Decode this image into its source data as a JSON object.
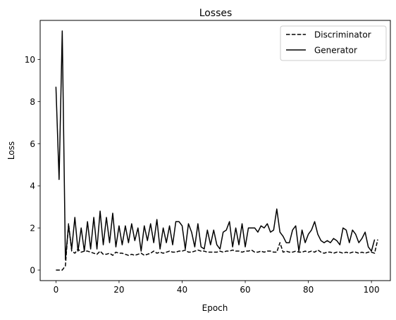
{
  "chart_data": {
    "type": "line",
    "title": "Losses",
    "xlabel": "Epoch",
    "ylabel": "Loss",
    "xlim": [
      -5,
      106
    ],
    "ylim": [
      -0.5,
      11.85
    ],
    "xticks": [
      0,
      20,
      40,
      60,
      80,
      100
    ],
    "yticks": [
      0,
      2,
      4,
      6,
      8,
      10
    ],
    "grid": false,
    "legend_position": "top-right",
    "x_start": 0,
    "x_step": 1,
    "series": [
      {
        "name": "Discriminator",
        "style": "dashed",
        "color": "#000000",
        "values": [
          0.0,
          0.0,
          0.0,
          0.2,
          2.2,
          0.9,
          0.8,
          1.0,
          0.85,
          0.9,
          0.9,
          0.85,
          0.8,
          0.75,
          0.9,
          0.75,
          0.75,
          0.8,
          0.7,
          0.85,
          0.8,
          0.8,
          0.75,
          0.7,
          0.75,
          0.7,
          0.75,
          0.8,
          0.7,
          0.75,
          0.8,
          0.9,
          0.8,
          0.85,
          0.8,
          0.85,
          0.9,
          0.85,
          0.85,
          0.9,
          0.9,
          0.95,
          0.85,
          0.85,
          0.9,
          0.95,
          0.9,
          0.9,
          0.85,
          0.85,
          0.85,
          0.85,
          0.9,
          0.85,
          0.9,
          0.9,
          0.95,
          0.9,
          0.9,
          0.85,
          0.9,
          0.9,
          0.95,
          0.85,
          0.85,
          0.9,
          0.85,
          0.9,
          0.9,
          0.85,
          0.85,
          1.3,
          0.85,
          0.9,
          0.85,
          0.85,
          0.9,
          0.85,
          0.85,
          0.9,
          0.85,
          0.9,
          0.85,
          0.95,
          0.85,
          0.8,
          0.85,
          0.85,
          0.8,
          0.85,
          0.85,
          0.8,
          0.85,
          0.8,
          0.85,
          0.85,
          0.8,
          0.85,
          0.8,
          0.85,
          0.85,
          0.8,
          1.45
        ]
      },
      {
        "name": "Generator",
        "style": "solid",
        "color": "#000000",
        "values": [
          8.7,
          4.3,
          11.35,
          0.5,
          2.1,
          1.0,
          2.5,
          0.9,
          2.0,
          0.9,
          2.3,
          1.0,
          2.5,
          1.0,
          2.8,
          1.2,
          2.5,
          1.3,
          2.7,
          1.1,
          2.1,
          1.2,
          2.1,
          1.3,
          2.2,
          1.4,
          2.0,
          0.9,
          2.1,
          1.4,
          2.2,
          1.3,
          2.4,
          1.0,
          2.0,
          1.3,
          2.1,
          1.2,
          2.3,
          2.3,
          2.1,
          1.0,
          2.2,
          1.8,
          1.1,
          2.2,
          1.1,
          1.0,
          1.9,
          1.2,
          1.9,
          1.2,
          1.0,
          1.8,
          1.9,
          2.3,
          1.1,
          2.0,
          1.2,
          2.2,
          1.1,
          2.0,
          2.0,
          2.0,
          1.8,
          2.1,
          2.0,
          2.2,
          1.8,
          1.9,
          2.9,
          1.8,
          1.6,
          1.3,
          1.3,
          1.9,
          2.1,
          0.9,
          1.9,
          1.3,
          1.7,
          1.9,
          2.3,
          1.7,
          1.4,
          1.3,
          1.4,
          1.3,
          1.5,
          1.4,
          1.2,
          2.0,
          1.9,
          1.3,
          1.9,
          1.7,
          1.3,
          1.5,
          1.8,
          1.1,
          0.9,
          1.45
        ]
      }
    ]
  }
}
